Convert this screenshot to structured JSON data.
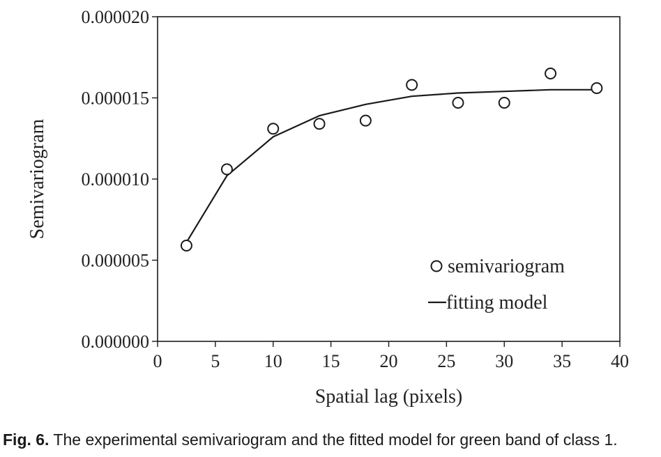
{
  "chart_data": {
    "type": "scatter",
    "xlabel": "Spatial lag (pixels)",
    "ylabel": "Semivariogram",
    "xlim": [
      0,
      40
    ],
    "ylim": [
      0,
      2e-05
    ],
    "x_ticks": [
      "0",
      "5",
      "10",
      "15",
      "20",
      "25",
      "30",
      "35",
      "40"
    ],
    "y_ticks": [
      "0.000000",
      "0.000005",
      "0.000010",
      "0.000015",
      "0.000020"
    ],
    "grid": false,
    "legend_position": "bottom-right",
    "series": [
      {
        "name": "semivariogram",
        "kind": "scatter",
        "marker": "open-circle",
        "x": [
          2.5,
          6,
          10,
          14,
          18,
          22,
          26,
          30,
          34,
          38
        ],
        "y": [
          5.9e-06,
          1.06e-05,
          1.31e-05,
          1.34e-05,
          1.36e-05,
          1.58e-05,
          1.47e-05,
          1.47e-05,
          1.65e-05,
          1.56e-05
        ]
      },
      {
        "name": "fitting model",
        "kind": "line",
        "x": [
          2.5,
          6,
          10,
          14,
          18,
          22,
          26,
          30,
          34,
          38
        ],
        "y": [
          6.1e-06,
          1.02e-05,
          1.26e-05,
          1.39e-05,
          1.46e-05,
          1.51e-05,
          1.53e-05,
          1.54e-05,
          1.55e-05,
          1.55e-05
        ]
      }
    ],
    "colors": {
      "axis": "#1a1a1a",
      "marker_stroke": "#1a1a1a",
      "line": "#1a1a1a"
    }
  },
  "caption": {
    "label": "Fig. 6.",
    "text": " The experimental semivariogram and the fitted model for green band of class 1."
  }
}
